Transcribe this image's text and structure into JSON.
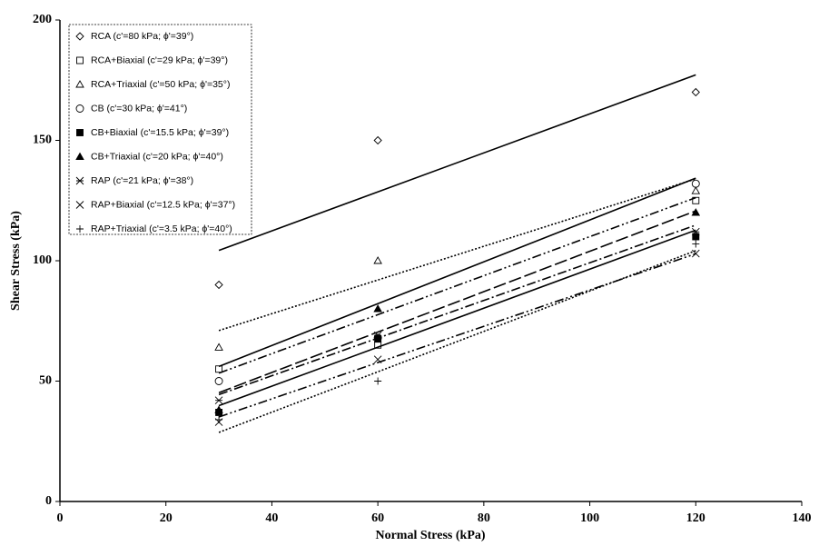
{
  "chart_data": {
    "type": "scatter-fit",
    "x_label": "Normal Stress (kPa)",
    "y_label": "Shear Stress (kPa)",
    "x": [
      30,
      60,
      120
    ],
    "fit_x": [
      30,
      120
    ],
    "xlim": [
      0,
      140
    ],
    "xticks": [
      0,
      20,
      40,
      60,
      80,
      100,
      120,
      140
    ],
    "ylim": [
      0,
      200
    ],
    "yticks": [
      0,
      50,
      100,
      150,
      200
    ],
    "legend": "upper left",
    "color": "#000000",
    "series": [
      {
        "name": "RCA (c'=80 kPa; ϕ'=39°)",
        "marker": "diamond",
        "line_style": "solid",
        "values": [
          90,
          150,
          170
        ],
        "fit": [
          104.3,
          177.2
        ]
      },
      {
        "name": "RCA+Biaxial (c'=29 kPa; ϕ'=39°)",
        "marker": "square",
        "line_style": "dashdotdot",
        "values": [
          55,
          65,
          125
        ],
        "fit": [
          53.3,
          126.2
        ]
      },
      {
        "name": "RCA+Triaxial (c'=50 kPa; ϕ'=35°)",
        "marker": "triangle",
        "line_style": "dotted",
        "values": [
          64,
          100,
          129
        ],
        "fit": [
          71.0,
          134.0
        ]
      },
      {
        "name": "CB (c'=30 kPa; ϕ'=41°)",
        "marker": "circle",
        "line_style": "solid",
        "values": [
          50,
          68,
          132
        ],
        "fit": [
          56.1,
          134.3
        ]
      },
      {
        "name": "CB+Biaxial (c'=15.5 kPa; ϕ'=39°)",
        "marker": "square-filled",
        "line_style": "solid",
        "values": [
          37,
          67.5,
          110
        ],
        "fit": [
          39.8,
          112.7
        ]
      },
      {
        "name": "CB+Triaxial (c'=20 kPa; ϕ'=40°)",
        "marker": "triangle-filled",
        "line_style": "longdash",
        "values": [
          38,
          80,
          120
        ],
        "fit": [
          45.2,
          120.7
        ]
      },
      {
        "name": "RAP (c'=21 kPa; ϕ'=38°)",
        "marker": "asterisk",
        "line_style": "dashdot",
        "values": [
          42,
          69,
          112
        ],
        "fit": [
          44.4,
          114.8
        ]
      },
      {
        "name": "RAP+Biaxial (c'=12.5 kPa; ϕ'=37°)",
        "marker": "cross",
        "line_style": "dashdotdot",
        "values": [
          33,
          59,
          103
        ],
        "fit": [
          35.1,
          102.9
        ]
      },
      {
        "name": "RAP+Triaxial (c'=3.5 kPa; ϕ'=40°)",
        "marker": "plus",
        "line_style": "dotted",
        "values": [
          34,
          50,
          107
        ],
        "fit": [
          28.7,
          104.2
        ]
      }
    ]
  }
}
